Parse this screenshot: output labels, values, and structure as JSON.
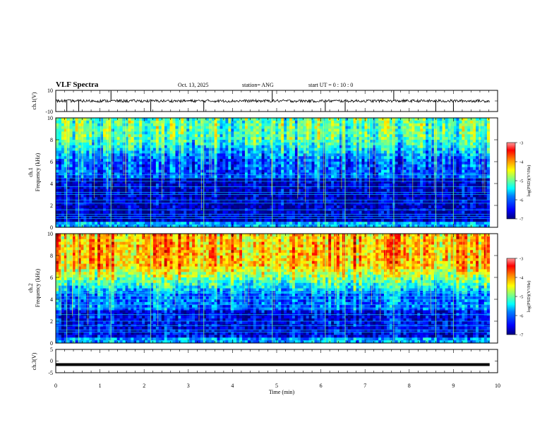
{
  "header": {
    "title": "VLF Spectra",
    "date": "Oct. 13, 2025",
    "station": "station= ANG",
    "start": "start  UT =   0  : 10 : 0"
  },
  "colors": {
    "background": "#ffffff",
    "axes": "#000000",
    "colormap": [
      "#00007f",
      "#0000ff",
      "#0080ff",
      "#00ffff",
      "#80ff80",
      "#ffff00",
      "#ff8000",
      "#ff0000",
      "#7f0000"
    ]
  },
  "chart_data": [
    {
      "type": "line",
      "name": "ch1-waveform",
      "ylabel": "ch.1(V)",
      "ylim": [
        -10,
        10
      ],
      "yticklabels": [
        "10",
        "-10"
      ],
      "baseline": 0,
      "spikes_min": [
        0.25,
        0.52,
        1.25,
        2.15,
        3.35,
        4.9,
        6.1,
        6.55,
        7.65,
        8.6,
        9.0
      ]
    },
    {
      "type": "heatmap",
      "name": "ch1-spectrogram",
      "ylabel": "ch.1\nFrequency (kHz)",
      "ylabel_line1": "ch.1",
      "ylabel_line2": "Frequency (kHz)",
      "ylim": [
        0,
        10
      ],
      "yticklabels": [
        "0",
        "2",
        "4",
        "6",
        "8",
        "10"
      ],
      "colorbar": {
        "label": "log(PSD)(V²/Hz)",
        "range": [
          -7,
          -3
        ],
        "ticklabels": [
          "-3",
          "-4",
          "-5",
          "-6",
          "-7"
        ]
      }
    },
    {
      "type": "heatmap",
      "name": "ch2-spectrogram",
      "ylabel_line1": "ch.2",
      "ylabel_line2": "Frequency (kHz)",
      "ylim": [
        0,
        10
      ],
      "yticklabels": [
        "0",
        "2",
        "4",
        "6",
        "8",
        "10"
      ],
      "colorbar": {
        "label": "log(PSD)(V²/Hz)",
        "range": [
          -7,
          -3
        ],
        "ticklabels": [
          "-3",
          "-4",
          "-5",
          "-6",
          "-7"
        ]
      }
    },
    {
      "type": "line",
      "name": "ch3-waveform",
      "ylabel": "ch.3(V)",
      "ylim": [
        -5,
        5
      ],
      "yticklabels": [
        "5",
        "0",
        "-5"
      ],
      "baseline": -1.5
    }
  ],
  "xaxis": {
    "label": "Time  (min)",
    "range": [
      0,
      10
    ],
    "ticklabels": [
      "0",
      "1",
      "2",
      "3",
      "4",
      "5",
      "6",
      "7",
      "8",
      "9",
      "10"
    ],
    "data_end_min": 9.82
  }
}
